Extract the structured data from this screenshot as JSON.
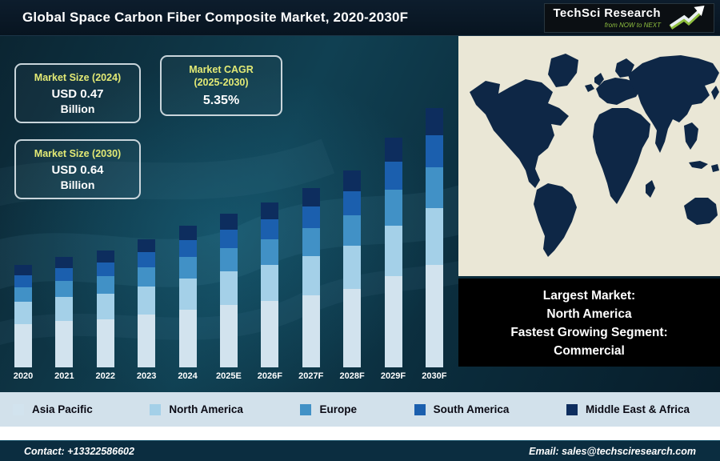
{
  "header": {
    "title": "Global Space Carbon Fiber Composite Market, 2020-2030F",
    "logo": {
      "brand": "TechSci Research",
      "tagline": "from NOW to NEXT"
    }
  },
  "stats": {
    "size_2024": {
      "label": "Market Size (2024)",
      "value": "USD 0.47",
      "unit": "Billion"
    },
    "cagr": {
      "label_line1": "Market CAGR",
      "label_line2": "(2025-2030)",
      "value": "5.35%"
    },
    "size_2030": {
      "label": "Market Size (2030)",
      "value": "USD 0.64",
      "unit": "Billion"
    }
  },
  "info_box": {
    "lines": [
      "Largest Market:",
      "North America",
      "Fastest Growing Segment:",
      "Commercial"
    ]
  },
  "footer": {
    "contact": "Contact: +13322586602",
    "email": "Email: sales@techsciresearch.com"
  },
  "chart_data": {
    "type": "bar",
    "stacked": true,
    "title": "Global Space Carbon Fiber Composite Market, 2020-2030F",
    "xlabel": "",
    "ylabel": "",
    "y_axis_shown": false,
    "units": "relative stacked-segment heights (figure has no value axis); known totals: 2024 = USD 0.47B, 2030 = USD 0.64B, CAGR 2025-2030 = 5.35%",
    "legend_position": "bottom",
    "categories": [
      "2020",
      "2021",
      "2022",
      "2023",
      "2024",
      "2025E",
      "2026F",
      "2027F",
      "2028F",
      "2029F",
      "2030F"
    ],
    "series": [
      {
        "name": "Asia Pacific",
        "color": "#d2e3ee",
        "values": [
          54,
          58,
          60,
          66,
          72,
          78,
          83,
          90,
          98,
          114,
          128
        ]
      },
      {
        "name": "North America",
        "color": "#a4d0e8",
        "values": [
          28,
          30,
          32,
          35,
          39,
          42,
          45,
          49,
          54,
          63,
          71
        ]
      },
      {
        "name": "Europe",
        "color": "#4191c6",
        "values": [
          18,
          20,
          22,
          24,
          27,
          29,
          32,
          35,
          38,
          45,
          51
        ]
      },
      {
        "name": "South America",
        "color": "#1b5fae",
        "values": [
          15,
          16,
          17,
          19,
          21,
          23,
          25,
          27,
          30,
          35,
          40
        ]
      },
      {
        "name": "Middle East & Africa",
        "color": "#0d2d5e",
        "values": [
          13,
          14,
          15,
          16,
          18,
          20,
          21,
          23,
          26,
          30,
          34
        ]
      }
    ]
  }
}
